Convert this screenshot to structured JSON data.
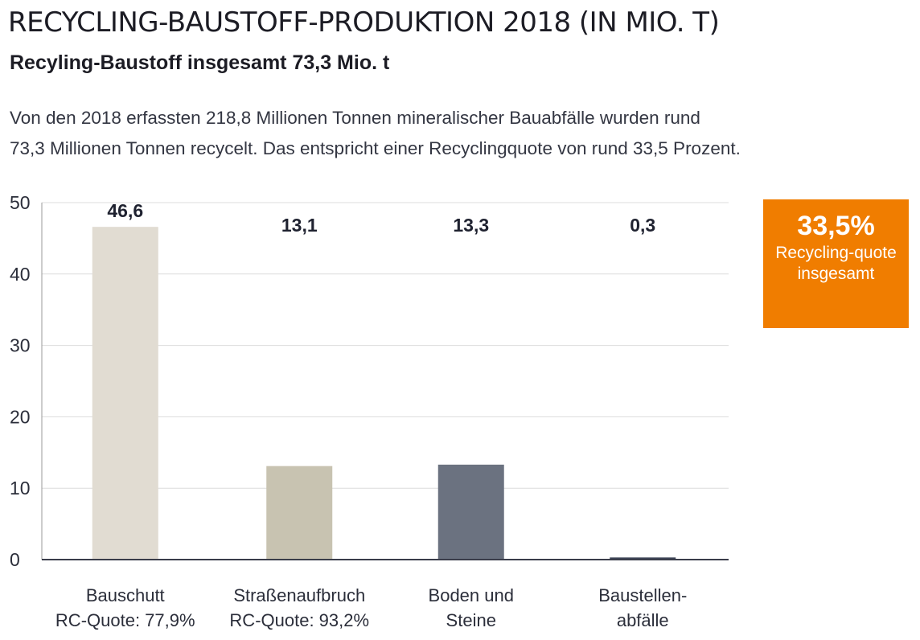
{
  "header": {
    "title": "RECYCLING-BAUSTOFF-PRODUKTION 2018 (IN MIO. T)",
    "subtitle": "Recyling-Baustoff insgesamt 73,3 Mio. t",
    "description_lines": [
      "Von den 2018 erfassten 218,8 Millionen Tonnen mineralischer Bauabfälle wurden rund",
      "73,3 Millionen Tonnen recycelt. Das entspricht einer Recyclingquote von rund 33,5 Prozent."
    ]
  },
  "quote_box": {
    "value": "33,5%",
    "text": "Recycling-quote insgesamt",
    "color": "#f07d00"
  },
  "chart_data": {
    "type": "bar",
    "categories": [
      [
        "Bauschutt",
        "RC-Quote: 77,9%"
      ],
      [
        "Straßenaufbruch",
        "RC-Quote: 93,2%"
      ],
      [
        "Boden und",
        "Steine"
      ],
      [
        "Baustellen-",
        "abfälle"
      ]
    ],
    "values": [
      46.6,
      13.1,
      13.3,
      0.3
    ],
    "value_labels": [
      "46,6",
      "13,1",
      "13,3",
      "0,3"
    ],
    "colors": [
      "#e1dcd2",
      "#c8c3b1",
      "#6b7280",
      "#3c4356"
    ],
    "ylim": [
      0,
      50
    ],
    "yticks": [
      0,
      10,
      20,
      30,
      40,
      50
    ],
    "grid": true,
    "title": "",
    "xlabel": "",
    "ylabel": ""
  }
}
